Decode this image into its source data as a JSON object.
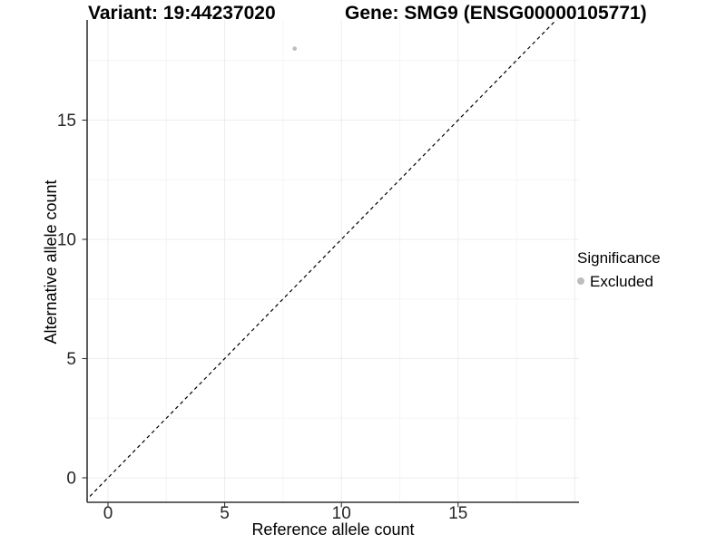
{
  "header": {
    "variant_title": "Variant: 19:44237020",
    "gene_title": "Gene: SMG9 (ENSG00000105771)"
  },
  "chart_data": {
    "type": "scatter",
    "title": "Variant: 19:44237020   Gene: SMG9 (ENSG00000105771)",
    "xlabel": "Reference allele count",
    "ylabel": "Alternative allele count",
    "xlim": [
      -0.9,
      20.2
    ],
    "ylim": [
      -1.0,
      19.2
    ],
    "x_ticks": [
      0,
      5,
      10,
      15
    ],
    "y_ticks": [
      0,
      5,
      10,
      15
    ],
    "x_grid_major": [
      0,
      5,
      10,
      15,
      20
    ],
    "x_grid_minor": [
      2.5,
      7.5,
      12.5,
      17.5
    ],
    "y_grid_major": [
      0,
      5,
      10,
      15
    ],
    "y_grid_minor": [
      2.5,
      7.5,
      12.5,
      17.5
    ],
    "grid": true,
    "series": [
      {
        "name": "Excluded",
        "color": "#bdbdbd",
        "points": [
          {
            "x": 8,
            "y": 18
          }
        ]
      }
    ],
    "reference_line": {
      "description": "identity line y = x",
      "slope": 1,
      "intercept": 0,
      "style": "dashed",
      "color": "#000000"
    },
    "legend": {
      "title": "Significance",
      "position": "right",
      "entries": [
        {
          "label": "Excluded",
          "color": "#bdbdbd"
        }
      ]
    },
    "colors": {
      "background": "#ffffff",
      "axis_line": "#333333",
      "tick_label": "#262626",
      "grid_major": "#ececec",
      "grid_minor": "#f5f5f5",
      "point": "#bdbdbd"
    }
  }
}
